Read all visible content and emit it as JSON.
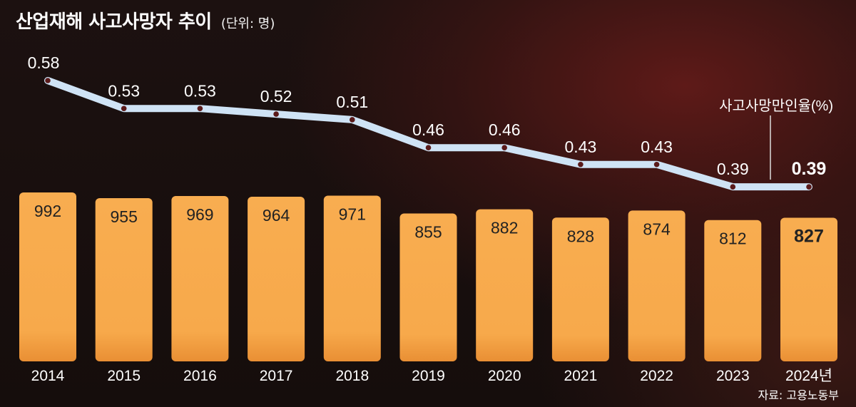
{
  "title": "산업재해 사고사망자 추이",
  "unit": "(단위: 명)",
  "source": "자료: 고용노동부",
  "line_label": "사고사망만인율(%)",
  "colors": {
    "bar": "#f7a94b",
    "line": "#cfe3f5",
    "text": "#ffffff",
    "bar_text": "#222222"
  },
  "chart_data": {
    "type": "bar",
    "categories": [
      "2014",
      "2015",
      "2016",
      "2017",
      "2018",
      "2019",
      "2020",
      "2021",
      "2022",
      "2023",
      "2024년"
    ],
    "series": [
      {
        "name": "",
        "type": "bar",
        "values": [
          992,
          955,
          969,
          964,
          971,
          855,
          882,
          828,
          874,
          812,
          827
        ]
      },
      {
        "name": "사고사망만인율(%)",
        "type": "line",
        "values": [
          0.58,
          0.53,
          0.53,
          0.52,
          0.51,
          0.46,
          0.46,
          0.43,
          0.43,
          0.39,
          0.39
        ]
      }
    ],
    "bar_labels": [
      "992",
      "955",
      "969",
      "964",
      "971",
      "855",
      "882",
      "828",
      "874",
      "812",
      "827"
    ],
    "line_labels": [
      "0.58",
      "0.53",
      "0.53",
      "0.52",
      "0.51",
      "0.46",
      "0.46",
      "0.43",
      "0.43",
      "0.39",
      "0.39"
    ],
    "highlight_index": 10,
    "grid": false,
    "legend": "none"
  }
}
